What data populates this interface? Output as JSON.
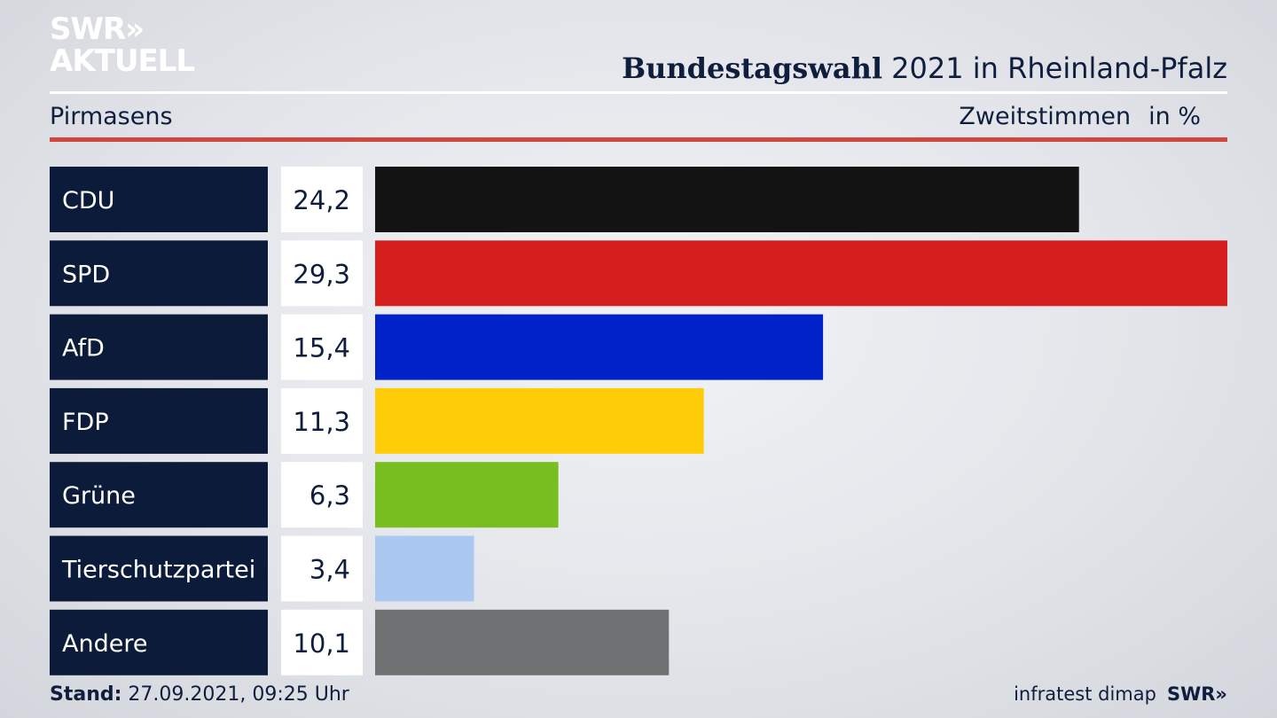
{
  "logo": {
    "line1": "SWR»",
    "line2": "AKTUELL"
  },
  "header": {
    "title_bold": "Bundestagswahl",
    "title_rest": " 2021 in Rheinland-Pfalz",
    "region": "Pirmasens",
    "measure": "Zweitstimmen",
    "unit": "in %"
  },
  "chart_data": {
    "type": "bar",
    "orientation": "horizontal",
    "categories": [
      "CDU",
      "SPD",
      "AfD",
      "FDP",
      "Grüne",
      "Tierschutzpartei",
      "Andere"
    ],
    "values": [
      24.2,
      29.3,
      15.4,
      11.3,
      6.3,
      3.4,
      10.1
    ],
    "value_labels": [
      "24,2",
      "29,3",
      "15,4",
      "11,3",
      "6,3",
      "3,4",
      "10,1"
    ],
    "colors": [
      "#131313",
      "#d62020",
      "#0022c8",
      "#ffcc08",
      "#78be1e",
      "#aac8f0",
      "#707173"
    ],
    "xlim": [
      0,
      29.3
    ],
    "grid": false,
    "label_box_color": "#0c1b3a",
    "value_box_color": "#ffffff"
  },
  "footer": {
    "stand_label": "Stand:",
    "stand_value": " 27.09.2021, 09:25 Uhr",
    "source": "infratest dimap",
    "brand": "SWR»"
  }
}
